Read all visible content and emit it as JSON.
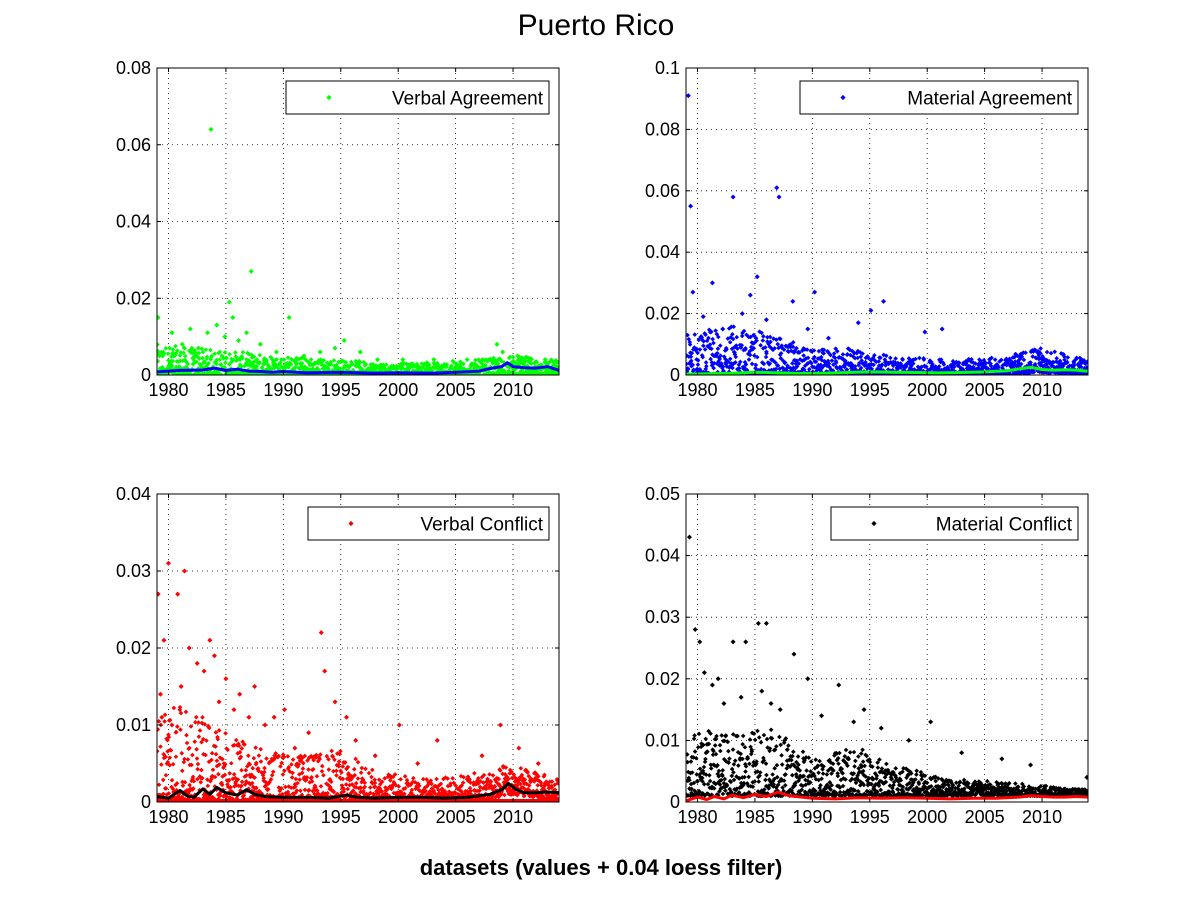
{
  "figure": {
    "title": "Puerto Rico",
    "xlabel": "datasets (values + 0.04 loess filter)"
  },
  "chart_data": [
    {
      "type": "scatter",
      "legend": "Verbal Agreement",
      "legend_position": "top-right",
      "grid": true,
      "xlim": [
        1979,
        2014
      ],
      "xticks": [
        1980,
        1985,
        1990,
        1995,
        2000,
        2005,
        2010
      ],
      "ylim": [
        0,
        0.08
      ],
      "yticks": [
        0,
        0.02,
        0.04,
        0.06,
        0.08
      ],
      "ytick_labels": [
        "0",
        "0.02",
        "0.04",
        "0.06",
        "0.08"
      ],
      "series": [
        {
          "name": "Verbal Agreement",
          "kind": "points",
          "color": "#00ff00",
          "x": [
            1979.1,
            1979.5,
            1980.3,
            1981.2,
            1981.9,
            1982.6,
            1983.4,
            1983.7,
            1984.2,
            1984.9,
            1985.3,
            1985.6,
            1986.1,
            1986.8,
            1987.2,
            1988.0,
            1989.4,
            1990.5,
            1991.8,
            1993.2,
            1994.5,
            1995.3,
            1996.7,
            1998.2,
            2000.4,
            2003.1,
            2006.0,
            2008.6,
            2009.1,
            2010.4,
            2012.8
          ],
          "y": [
            0.015,
            0.005,
            0.011,
            0.008,
            0.012,
            0.007,
            0.011,
            0.064,
            0.013,
            0.01,
            0.019,
            0.015,
            0.009,
            0.011,
            0.027,
            0.008,
            0.006,
            0.015,
            0.005,
            0.006,
            0.007,
            0.009,
            0.006,
            0.004,
            0.004,
            0.004,
            0.004,
            0.008,
            0.006,
            0.005,
            0.004
          ]
        },
        {
          "name": "",
          "kind": "points-dense",
          "color": "#00ff00",
          "x_range": [
            1979,
            2014
          ],
          "band": [
            [
              1979,
              0.0,
              0.008
            ],
            [
              1990,
              0.0,
              0.005
            ],
            [
              2000,
              0.0,
              0.003
            ],
            [
              2007,
              0.0,
              0.004
            ],
            [
              2010,
              0.0,
              0.005
            ],
            [
              2014,
              0.0,
              0.004
            ]
          ]
        },
        {
          "name": "",
          "kind": "line",
          "color": "#0000ff",
          "x": [
            1979,
            1981,
            1983,
            1984,
            1985,
            1986,
            1987,
            1988,
            1989,
            1990,
            1992,
            1995,
            1998,
            2000,
            2003,
            2005,
            2007,
            2008,
            2009,
            2009.5,
            2010,
            2011,
            2012,
            2013,
            2014
          ],
          "y": [
            0.0008,
            0.0012,
            0.0013,
            0.0018,
            0.0012,
            0.0015,
            0.001,
            0.0009,
            0.0007,
            0.0009,
            0.0006,
            0.0007,
            0.0005,
            0.0006,
            0.0005,
            0.0007,
            0.001,
            0.0017,
            0.0022,
            0.0032,
            0.0022,
            0.0019,
            0.0018,
            0.0022,
            0.0012
          ]
        }
      ]
    },
    {
      "type": "scatter",
      "legend": "Material Agreement",
      "legend_position": "top-right",
      "grid": true,
      "xlim": [
        1979,
        2014
      ],
      "xticks": [
        1980,
        1985,
        1990,
        1995,
        2000,
        2005,
        2010
      ],
      "ylim": [
        0,
        0.1
      ],
      "yticks": [
        0,
        0.02,
        0.04,
        0.06,
        0.08,
        0.1
      ],
      "ytick_labels": [
        "0",
        "0.02",
        "0.04",
        "0.06",
        "0.08",
        "0.1"
      ],
      "series": [
        {
          "name": "Material Agreement",
          "kind": "points",
          "color": "#0000ff",
          "x": [
            1979.2,
            1979.4,
            1979.6,
            1980.5,
            1981.3,
            1982.2,
            1983.1,
            1983.9,
            1984.6,
            1985.2,
            1986.0,
            1986.9,
            1987.1,
            1988.3,
            1989.6,
            1990.2,
            1991.4,
            1994.0,
            1995.1,
            1996.2,
            1999.8,
            2001.3,
            2009.2
          ],
          "y": [
            0.091,
            0.055,
            0.027,
            0.019,
            0.03,
            0.015,
            0.058,
            0.02,
            0.026,
            0.032,
            0.018,
            0.061,
            0.058,
            0.024,
            0.015,
            0.027,
            0.012,
            0.017,
            0.021,
            0.024,
            0.014,
            0.015,
            0.008
          ]
        },
        {
          "name": "",
          "kind": "points-dense",
          "color": "#0000ff",
          "x_range": [
            1979,
            2014
          ],
          "band": [
            [
              1979,
              0.0,
              0.014
            ],
            [
              1983,
              0.0,
              0.016
            ],
            [
              1987,
              0.0,
              0.013
            ],
            [
              1990,
              0.0,
              0.008
            ],
            [
              1993,
              0.0,
              0.009
            ],
            [
              1997,
              0.0,
              0.006
            ],
            [
              2002,
              0.0,
              0.005
            ],
            [
              2007,
              0.0,
              0.006
            ],
            [
              2009.5,
              0.001,
              0.009
            ],
            [
              2014,
              0.0,
              0.005
            ]
          ]
        },
        {
          "name": "",
          "kind": "line",
          "color": "#00ff00",
          "x": [
            1979,
            1981,
            1983,
            1985,
            1987,
            1989,
            1991,
            1993,
            1995,
            1997,
            1999,
            2001,
            2003,
            2005,
            2007,
            2008,
            2009,
            2010,
            2011,
            2012,
            2013,
            2014
          ],
          "y": [
            0.0003,
            0.0004,
            0.0006,
            0.0009,
            0.0007,
            0.0005,
            0.0006,
            0.0008,
            0.001,
            0.0009,
            0.0008,
            0.0007,
            0.0008,
            0.001,
            0.0014,
            0.002,
            0.0025,
            0.0018,
            0.0016,
            0.0017,
            0.0016,
            0.0012
          ]
        }
      ]
    },
    {
      "type": "scatter",
      "legend": "Verbal Conflict",
      "legend_position": "top-right",
      "grid": true,
      "xlim": [
        1979,
        2014
      ],
      "xticks": [
        1980,
        1985,
        1990,
        1995,
        2000,
        2005,
        2010
      ],
      "ylim": [
        0,
        0.04
      ],
      "yticks": [
        0,
        0.01,
        0.02,
        0.03,
        0.04
      ],
      "ytick_labels": [
        "0",
        "0.01",
        "0.02",
        "0.03",
        "0.04"
      ],
      "series": [
        {
          "name": "Verbal Conflict",
          "kind": "points",
          "color": "#ff0000",
          "x": [
            1979.1,
            1979.3,
            1979.6,
            1980.0,
            1980.3,
            1980.8,
            1981.1,
            1981.4,
            1981.8,
            1982.5,
            1983.1,
            1983.6,
            1984.0,
            1984.4,
            1985.0,
            1985.7,
            1986.2,
            1987.0,
            1987.5,
            1988.4,
            1989.2,
            1990.1,
            1991.0,
            1992.2,
            1993.3,
            1993.6,
            1994.5,
            1995.5,
            1996.3,
            1998.0,
            2000.1,
            2001.7,
            2003.4,
            2007.3,
            2008.9,
            2010.5,
            2012.2
          ],
          "y": [
            0.027,
            0.014,
            0.021,
            0.031,
            0.01,
            0.027,
            0.015,
            0.03,
            0.02,
            0.018,
            0.017,
            0.021,
            0.019,
            0.013,
            0.016,
            0.012,
            0.014,
            0.011,
            0.015,
            0.01,
            0.011,
            0.012,
            0.007,
            0.009,
            0.022,
            0.017,
            0.013,
            0.011,
            0.008,
            0.006,
            0.01,
            0.005,
            0.008,
            0.006,
            0.01,
            0.007,
            0.005
          ]
        },
        {
          "name": "",
          "kind": "points-dense",
          "color": "#ff0000",
          "x_range": [
            1979,
            2014
          ],
          "band": [
            [
              1979,
              0.0003,
              0.013
            ],
            [
              1982,
              0.0003,
              0.012
            ],
            [
              1985,
              0.0003,
              0.009
            ],
            [
              1988,
              0.0003,
              0.007
            ],
            [
              1992,
              0.0003,
              0.006
            ],
            [
              1995,
              0.0003,
              0.007
            ],
            [
              1998,
              0.0003,
              0.004
            ],
            [
              2003,
              0.0003,
              0.003
            ],
            [
              2008,
              0.0003,
              0.004
            ],
            [
              2009.5,
              0.001,
              0.005
            ],
            [
              2014,
              0.0003,
              0.003
            ]
          ]
        },
        {
          "name": "",
          "kind": "baseline",
          "color": "#ff0000",
          "y": 0
        },
        {
          "name": "",
          "kind": "line",
          "color": "#000000",
          "x": [
            1979,
            1980,
            1981,
            1981.6,
            1982.2,
            1983,
            1983.6,
            1984.2,
            1985,
            1986,
            1986.8,
            1987.5,
            1988.5,
            1990,
            1992,
            1994,
            1995.5,
            1996.5,
            1998,
            2000,
            2002,
            2004,
            2006,
            2008,
            2009,
            2009.6,
            2010.3,
            2011,
            2012,
            2013,
            2014
          ],
          "y": [
            0.0007,
            0.0005,
            0.0015,
            0.0008,
            0.0006,
            0.0017,
            0.001,
            0.0019,
            0.0012,
            0.0009,
            0.0016,
            0.001,
            0.0007,
            0.0006,
            0.0006,
            0.0005,
            0.0009,
            0.0006,
            0.0005,
            0.0006,
            0.0006,
            0.0005,
            0.0006,
            0.001,
            0.0016,
            0.0024,
            0.0016,
            0.0012,
            0.0012,
            0.0013,
            0.0012
          ]
        }
      ]
    },
    {
      "type": "scatter",
      "legend": "Material Conflict",
      "legend_position": "top-right",
      "grid": true,
      "xlim": [
        1979,
        2014
      ],
      "xticks": [
        1980,
        1985,
        1990,
        1995,
        2000,
        2005,
        2010
      ],
      "ylim": [
        0,
        0.05
      ],
      "yticks": [
        0,
        0.01,
        0.02,
        0.03,
        0.04,
        0.05
      ],
      "ytick_labels": [
        "0",
        "0.01",
        "0.02",
        "0.03",
        "0.04",
        "0.05"
      ],
      "series": [
        {
          "name": "Material Conflict",
          "kind": "points",
          "color": "#000000",
          "x": [
            1979.3,
            1979.8,
            1980.2,
            1980.6,
            1981.3,
            1981.8,
            1982.3,
            1983.1,
            1983.8,
            1984.2,
            1985.3,
            1985.6,
            1986.0,
            1986.4,
            1987.2,
            1988.4,
            1989.6,
            1990.8,
            1992.3,
            1993.6,
            1994.5,
            1996.0,
            1998.4,
            2000.3,
            2003.0,
            2006.5,
            2009.0,
            2013.9
          ],
          "y": [
            0.043,
            0.028,
            0.026,
            0.021,
            0.019,
            0.02,
            0.016,
            0.026,
            0.017,
            0.026,
            0.029,
            0.018,
            0.029,
            0.016,
            0.015,
            0.024,
            0.02,
            0.014,
            0.019,
            0.013,
            0.015,
            0.012,
            0.01,
            0.013,
            0.008,
            0.007,
            0.006,
            0.004
          ]
        },
        {
          "name": "",
          "kind": "points-dense",
          "color": "#000000",
          "x_range": [
            1979,
            2014
          ],
          "band": [
            [
              1979,
              0.001,
              0.012
            ],
            [
              1983,
              0.001,
              0.011
            ],
            [
              1987,
              0.001,
              0.012
            ],
            [
              1990,
              0.001,
              0.007
            ],
            [
              1994,
              0.001,
              0.009
            ],
            [
              1997,
              0.001,
              0.006
            ],
            [
              2002,
              0.001,
              0.004
            ],
            [
              2008,
              0.001,
              0.003
            ],
            [
              2014,
              0.001,
              0.002
            ]
          ]
        },
        {
          "name": "",
          "kind": "line",
          "color": "#ff0000",
          "x": [
            1979,
            1980,
            1980.8,
            1981.5,
            1982.3,
            1983,
            1984,
            1985,
            1986,
            1987,
            1988,
            1990,
            1992,
            1994,
            1996,
            1998,
            2000,
            2002,
            2004,
            2006,
            2008,
            2009,
            2010,
            2011,
            2012,
            2013,
            2014
          ],
          "y": [
            0.0002,
            0.0008,
            0.0004,
            0.0009,
            0.0005,
            0.0011,
            0.0007,
            0.0012,
            0.0009,
            0.0016,
            0.001,
            0.0006,
            0.0005,
            0.0007,
            0.0006,
            0.0007,
            0.0006,
            0.0005,
            0.0006,
            0.0006,
            0.0008,
            0.001,
            0.0009,
            0.0008,
            0.0008,
            0.0009,
            0.0008
          ]
        }
      ]
    }
  ]
}
